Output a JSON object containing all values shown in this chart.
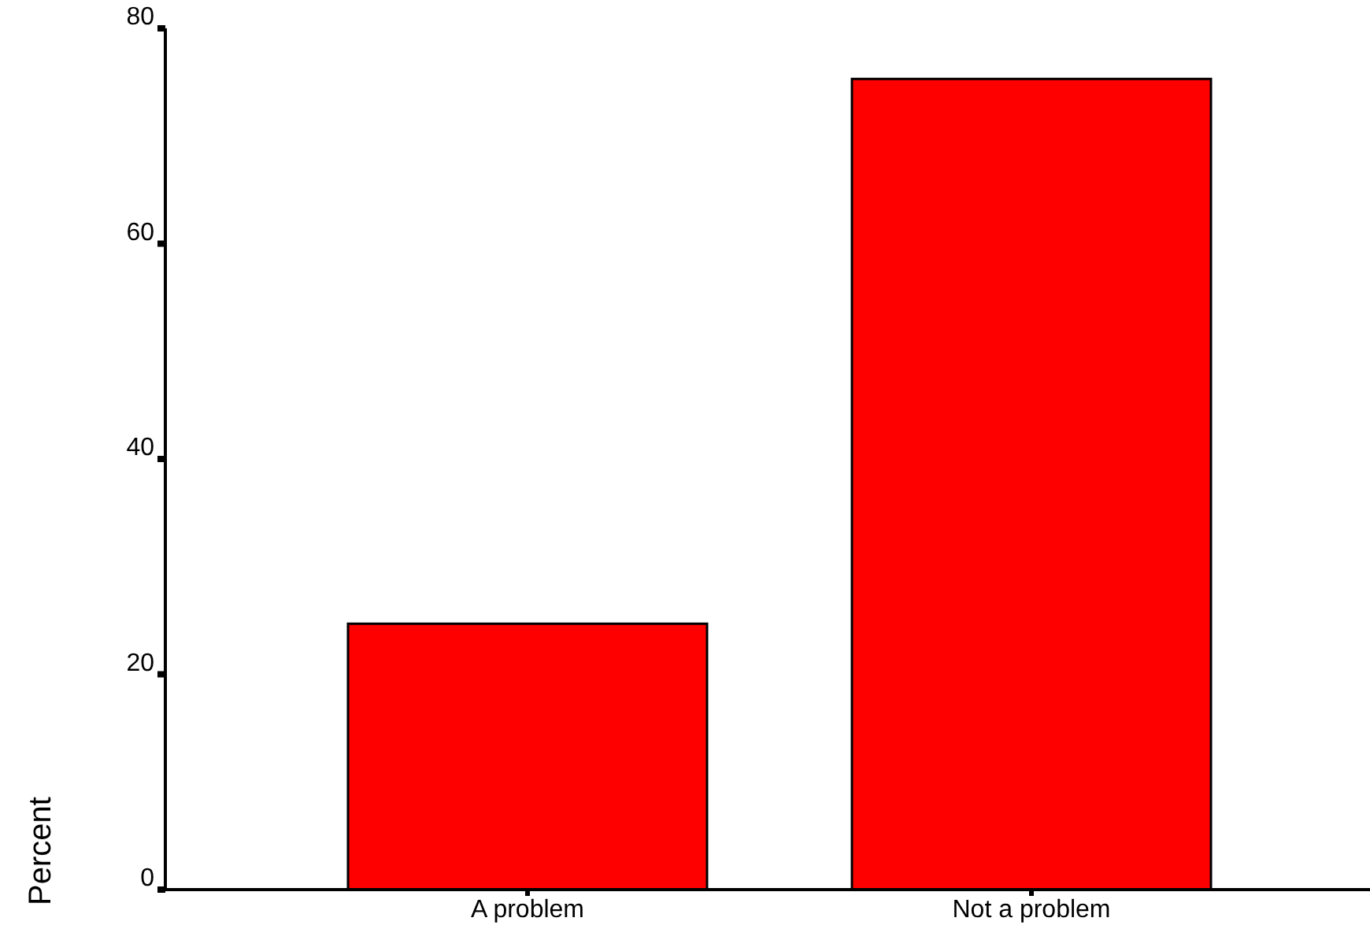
{
  "chart_data": {
    "type": "bar",
    "ylabel": "Percent",
    "categories": [
      "A problem",
      "Not a problem"
    ],
    "values": [
      24.7,
      75.3
    ],
    "color": "#ff0000",
    "ylim": [
      0,
      80
    ],
    "yticks": [
      0,
      20,
      40,
      60,
      80
    ],
    "grid": false,
    "legend": false
  }
}
